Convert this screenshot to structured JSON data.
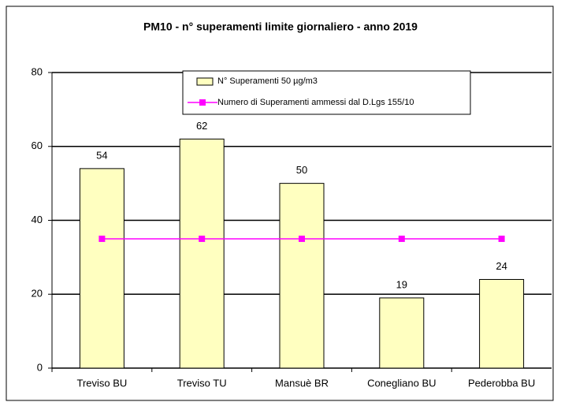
{
  "chart_data": {
    "type": "bar",
    "title": "PM10 - n° superamenti limite giornaliero - anno 2019",
    "categories": [
      "Treviso BU",
      "Treviso TU",
      "Mansuè BR",
      "Conegliano BU",
      "Pederobba BU"
    ],
    "series": [
      {
        "name": "N° Superamenti 50 µg/m3",
        "type": "bar",
        "color": "#ffffc0",
        "values": [
          54,
          62,
          50,
          19,
          24
        ]
      },
      {
        "name": "Numero di Superamenti ammessi dal D.Lgs 155/10",
        "type": "line",
        "color": "#ff00ff",
        "values": [
          35,
          35,
          35,
          35,
          35
        ]
      }
    ],
    "ylim": [
      0,
      80
    ],
    "yticks": [
      0,
      20,
      40,
      60,
      80
    ],
    "grid": true
  }
}
